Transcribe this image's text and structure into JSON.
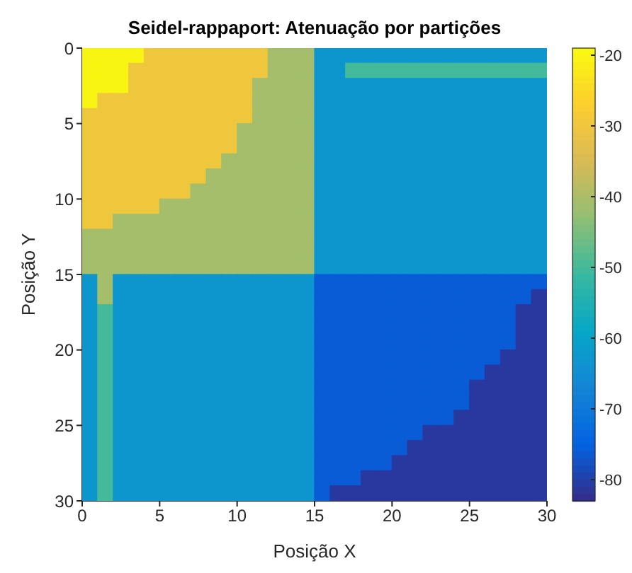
{
  "chart_data": {
    "type": "heatmap",
    "title": "Seidel-rappaport: Atenuação por partições",
    "xlabel": "Posição X",
    "ylabel": "Posição Y",
    "xlim": [
      0,
      30
    ],
    "xticks": [
      0,
      5,
      10,
      15,
      20,
      25,
      30
    ],
    "ylim": [
      30,
      0
    ],
    "yticks": [
      0,
      5,
      10,
      15,
      20,
      25,
      30
    ],
    "clim": [
      -83,
      -19
    ],
    "cticks": [
      -80,
      -70,
      -60,
      -50,
      -40,
      -30,
      -20
    ],
    "cells": [
      [
        -20,
        -20,
        -20,
        -20,
        -30,
        -30,
        -30,
        -30,
        -30,
        -30,
        -30,
        -30,
        -41,
        -41,
        -41,
        -63,
        -63,
        -63,
        -63,
        -63,
        -63,
        -63,
        -63,
        -63,
        -63,
        -63,
        -63,
        -63,
        -63,
        -63
      ],
      [
        -20,
        -20,
        -20,
        -30,
        -30,
        -30,
        -30,
        -30,
        -30,
        -30,
        -30,
        -30,
        -41,
        -41,
        -41,
        -63,
        -63,
        -50,
        -50,
        -50,
        -50,
        -50,
        -50,
        -50,
        -50,
        -50,
        -50,
        -50,
        -50,
        -50
      ],
      [
        -20,
        -20,
        -20,
        -30,
        -30,
        -30,
        -30,
        -30,
        -30,
        -30,
        -30,
        -41,
        -41,
        -41,
        -41,
        -63,
        -63,
        -63,
        -63,
        -63,
        -63,
        -63,
        -63,
        -63,
        -63,
        -63,
        -63,
        -63,
        -63,
        -63
      ],
      [
        -20,
        -30,
        -30,
        -30,
        -30,
        -30,
        -30,
        -30,
        -30,
        -30,
        -30,
        -41,
        -41,
        -41,
        -41,
        -63,
        -63,
        -63,
        -63,
        -63,
        -63,
        -63,
        -63,
        -63,
        -63,
        -63,
        -63,
        -63,
        -63,
        -63
      ],
      [
        -30,
        -30,
        -30,
        -30,
        -30,
        -30,
        -30,
        -30,
        -30,
        -30,
        -30,
        -41,
        -41,
        -41,
        -41,
        -63,
        -63,
        -63,
        -63,
        -63,
        -63,
        -63,
        -63,
        -63,
        -63,
        -63,
        -63,
        -63,
        -63,
        -63
      ],
      [
        -30,
        -30,
        -30,
        -30,
        -30,
        -30,
        -30,
        -30,
        -30,
        -30,
        -41,
        -41,
        -41,
        -41,
        -41,
        -63,
        -63,
        -63,
        -63,
        -63,
        -63,
        -63,
        -63,
        -63,
        -63,
        -63,
        -63,
        -63,
        -63,
        -63
      ],
      [
        -30,
        -30,
        -30,
        -30,
        -30,
        -30,
        -30,
        -30,
        -30,
        -30,
        -41,
        -41,
        -41,
        -41,
        -41,
        -63,
        -63,
        -63,
        -63,
        -63,
        -63,
        -63,
        -63,
        -63,
        -63,
        -63,
        -63,
        -63,
        -63,
        -63
      ],
      [
        -30,
        -30,
        -30,
        -30,
        -30,
        -30,
        -30,
        -30,
        -30,
        -41,
        -41,
        -41,
        -41,
        -41,
        -41,
        -63,
        -63,
        -63,
        -63,
        -63,
        -63,
        -63,
        -63,
        -63,
        -63,
        -63,
        -63,
        -63,
        -63,
        -63
      ],
      [
        -30,
        -30,
        -30,
        -30,
        -30,
        -30,
        -30,
        -30,
        -41,
        -41,
        -41,
        -41,
        -41,
        -41,
        -41,
        -63,
        -63,
        -63,
        -63,
        -63,
        -63,
        -63,
        -63,
        -63,
        -63,
        -63,
        -63,
        -63,
        -63,
        -63
      ],
      [
        -30,
        -30,
        -30,
        -30,
        -30,
        -30,
        -30,
        -41,
        -41,
        -41,
        -41,
        -41,
        -41,
        -41,
        -41,
        -63,
        -63,
        -63,
        -63,
        -63,
        -63,
        -63,
        -63,
        -63,
        -63,
        -63,
        -63,
        -63,
        -63,
        -63
      ],
      [
        -30,
        -30,
        -30,
        -30,
        -30,
        -41,
        -41,
        -41,
        -41,
        -41,
        -41,
        -41,
        -41,
        -41,
        -41,
        -63,
        -63,
        -63,
        -63,
        -63,
        -63,
        -63,
        -63,
        -63,
        -63,
        -63,
        -63,
        -63,
        -63,
        -63
      ],
      [
        -30,
        -30,
        -41,
        -41,
        -41,
        -41,
        -41,
        -41,
        -41,
        -41,
        -41,
        -41,
        -41,
        -41,
        -41,
        -63,
        -63,
        -63,
        -63,
        -63,
        -63,
        -63,
        -63,
        -63,
        -63,
        -63,
        -63,
        -63,
        -63,
        -63
      ],
      [
        -41,
        -41,
        -41,
        -41,
        -41,
        -41,
        -41,
        -41,
        -41,
        -41,
        -41,
        -41,
        -41,
        -41,
        -41,
        -63,
        -63,
        -63,
        -63,
        -63,
        -63,
        -63,
        -63,
        -63,
        -63,
        -63,
        -63,
        -63,
        -63,
        -63
      ],
      [
        -41,
        -41,
        -41,
        -41,
        -41,
        -41,
        -41,
        -41,
        -41,
        -41,
        -41,
        -41,
        -41,
        -41,
        -41,
        -63,
        -63,
        -63,
        -63,
        -63,
        -63,
        -63,
        -63,
        -63,
        -63,
        -63,
        -63,
        -63,
        -63,
        -63
      ],
      [
        -41,
        -41,
        -41,
        -41,
        -41,
        -41,
        -41,
        -41,
        -41,
        -41,
        -41,
        -41,
        -41,
        -41,
        -41,
        -63,
        -63,
        -63,
        -63,
        -63,
        -63,
        -63,
        -63,
        -63,
        -63,
        -63,
        -63,
        -63,
        -63,
        -63
      ],
      [
        -63,
        -41,
        -63,
        -63,
        -63,
        -63,
        -63,
        -63,
        -63,
        -63,
        -63,
        -63,
        -63,
        -63,
        -63,
        -76,
        -76,
        -76,
        -76,
        -76,
        -76,
        -76,
        -76,
        -76,
        -76,
        -76,
        -76,
        -76,
        -76,
        -76
      ],
      [
        -63,
        -41,
        -63,
        -63,
        -63,
        -63,
        -63,
        -63,
        -63,
        -63,
        -63,
        -63,
        -63,
        -63,
        -63,
        -76,
        -76,
        -76,
        -76,
        -76,
        -76,
        -76,
        -76,
        -76,
        -76,
        -76,
        -76,
        -76,
        -76,
        -81
      ],
      [
        -63,
        -50,
        -63,
        -63,
        -63,
        -63,
        -63,
        -63,
        -63,
        -63,
        -63,
        -63,
        -63,
        -63,
        -63,
        -76,
        -76,
        -76,
        -76,
        -76,
        -76,
        -76,
        -76,
        -76,
        -76,
        -76,
        -76,
        -76,
        -81,
        -81
      ],
      [
        -63,
        -50,
        -63,
        -63,
        -63,
        -63,
        -63,
        -63,
        -63,
        -63,
        -63,
        -63,
        -63,
        -63,
        -63,
        -76,
        -76,
        -76,
        -76,
        -76,
        -76,
        -76,
        -76,
        -76,
        -76,
        -76,
        -76,
        -76,
        -81,
        -81
      ],
      [
        -63,
        -50,
        -63,
        -63,
        -63,
        -63,
        -63,
        -63,
        -63,
        -63,
        -63,
        -63,
        -63,
        -63,
        -63,
        -76,
        -76,
        -76,
        -76,
        -76,
        -76,
        -76,
        -76,
        -76,
        -76,
        -76,
        -76,
        -76,
        -81,
        -81
      ],
      [
        -63,
        -50,
        -63,
        -63,
        -63,
        -63,
        -63,
        -63,
        -63,
        -63,
        -63,
        -63,
        -63,
        -63,
        -63,
        -76,
        -76,
        -76,
        -76,
        -76,
        -76,
        -76,
        -76,
        -76,
        -76,
        -76,
        -76,
        -81,
        -81,
        -81
      ],
      [
        -63,
        -50,
        -63,
        -63,
        -63,
        -63,
        -63,
        -63,
        -63,
        -63,
        -63,
        -63,
        -63,
        -63,
        -63,
        -76,
        -76,
        -76,
        -76,
        -76,
        -76,
        -76,
        -76,
        -76,
        -76,
        -76,
        -81,
        -81,
        -81,
        -81
      ],
      [
        -63,
        -50,
        -63,
        -63,
        -63,
        -63,
        -63,
        -63,
        -63,
        -63,
        -63,
        -63,
        -63,
        -63,
        -63,
        -76,
        -76,
        -76,
        -76,
        -76,
        -76,
        -76,
        -76,
        -76,
        -76,
        -81,
        -81,
        -81,
        -81,
        -81
      ],
      [
        -63,
        -50,
        -63,
        -63,
        -63,
        -63,
        -63,
        -63,
        -63,
        -63,
        -63,
        -63,
        -63,
        -63,
        -63,
        -76,
        -76,
        -76,
        -76,
        -76,
        -76,
        -76,
        -76,
        -76,
        -76,
        -81,
        -81,
        -81,
        -81,
        -81
      ],
      [
        -63,
        -50,
        -63,
        -63,
        -63,
        -63,
        -63,
        -63,
        -63,
        -63,
        -63,
        -63,
        -63,
        -63,
        -63,
        -76,
        -76,
        -76,
        -76,
        -76,
        -76,
        -76,
        -76,
        -76,
        -81,
        -81,
        -81,
        -81,
        -81,
        -81
      ],
      [
        -63,
        -50,
        -63,
        -63,
        -63,
        -63,
        -63,
        -63,
        -63,
        -63,
        -63,
        -63,
        -63,
        -63,
        -63,
        -76,
        -76,
        -76,
        -76,
        -76,
        -76,
        -76,
        -81,
        -81,
        -81,
        -81,
        -81,
        -81,
        -81,
        -81
      ],
      [
        -63,
        -50,
        -63,
        -63,
        -63,
        -63,
        -63,
        -63,
        -63,
        -63,
        -63,
        -63,
        -63,
        -63,
        -63,
        -76,
        -76,
        -76,
        -76,
        -76,
        -76,
        -81,
        -81,
        -81,
        -81,
        -81,
        -81,
        -81,
        -81,
        -81
      ],
      [
        -63,
        -50,
        -63,
        -63,
        -63,
        -63,
        -63,
        -63,
        -63,
        -63,
        -63,
        -63,
        -63,
        -63,
        -63,
        -76,
        -76,
        -76,
        -76,
        -76,
        -81,
        -81,
        -81,
        -81,
        -81,
        -81,
        -81,
        -81,
        -81,
        -81
      ],
      [
        -63,
        -50,
        -63,
        -63,
        -63,
        -63,
        -63,
        -63,
        -63,
        -63,
        -63,
        -63,
        -63,
        -63,
        -63,
        -76,
        -76,
        -76,
        -81,
        -81,
        -81,
        -81,
        -81,
        -81,
        -81,
        -81,
        -81,
        -81,
        -81,
        -81
      ],
      [
        -63,
        -50,
        -63,
        -63,
        -63,
        -63,
        -63,
        -63,
        -63,
        -63,
        -63,
        -63,
        -63,
        -63,
        -63,
        -76,
        -81,
        -81,
        -81,
        -81,
        -81,
        -81,
        -81,
        -81,
        -81,
        -81,
        -81,
        -81,
        -81,
        -81
      ]
    ]
  }
}
